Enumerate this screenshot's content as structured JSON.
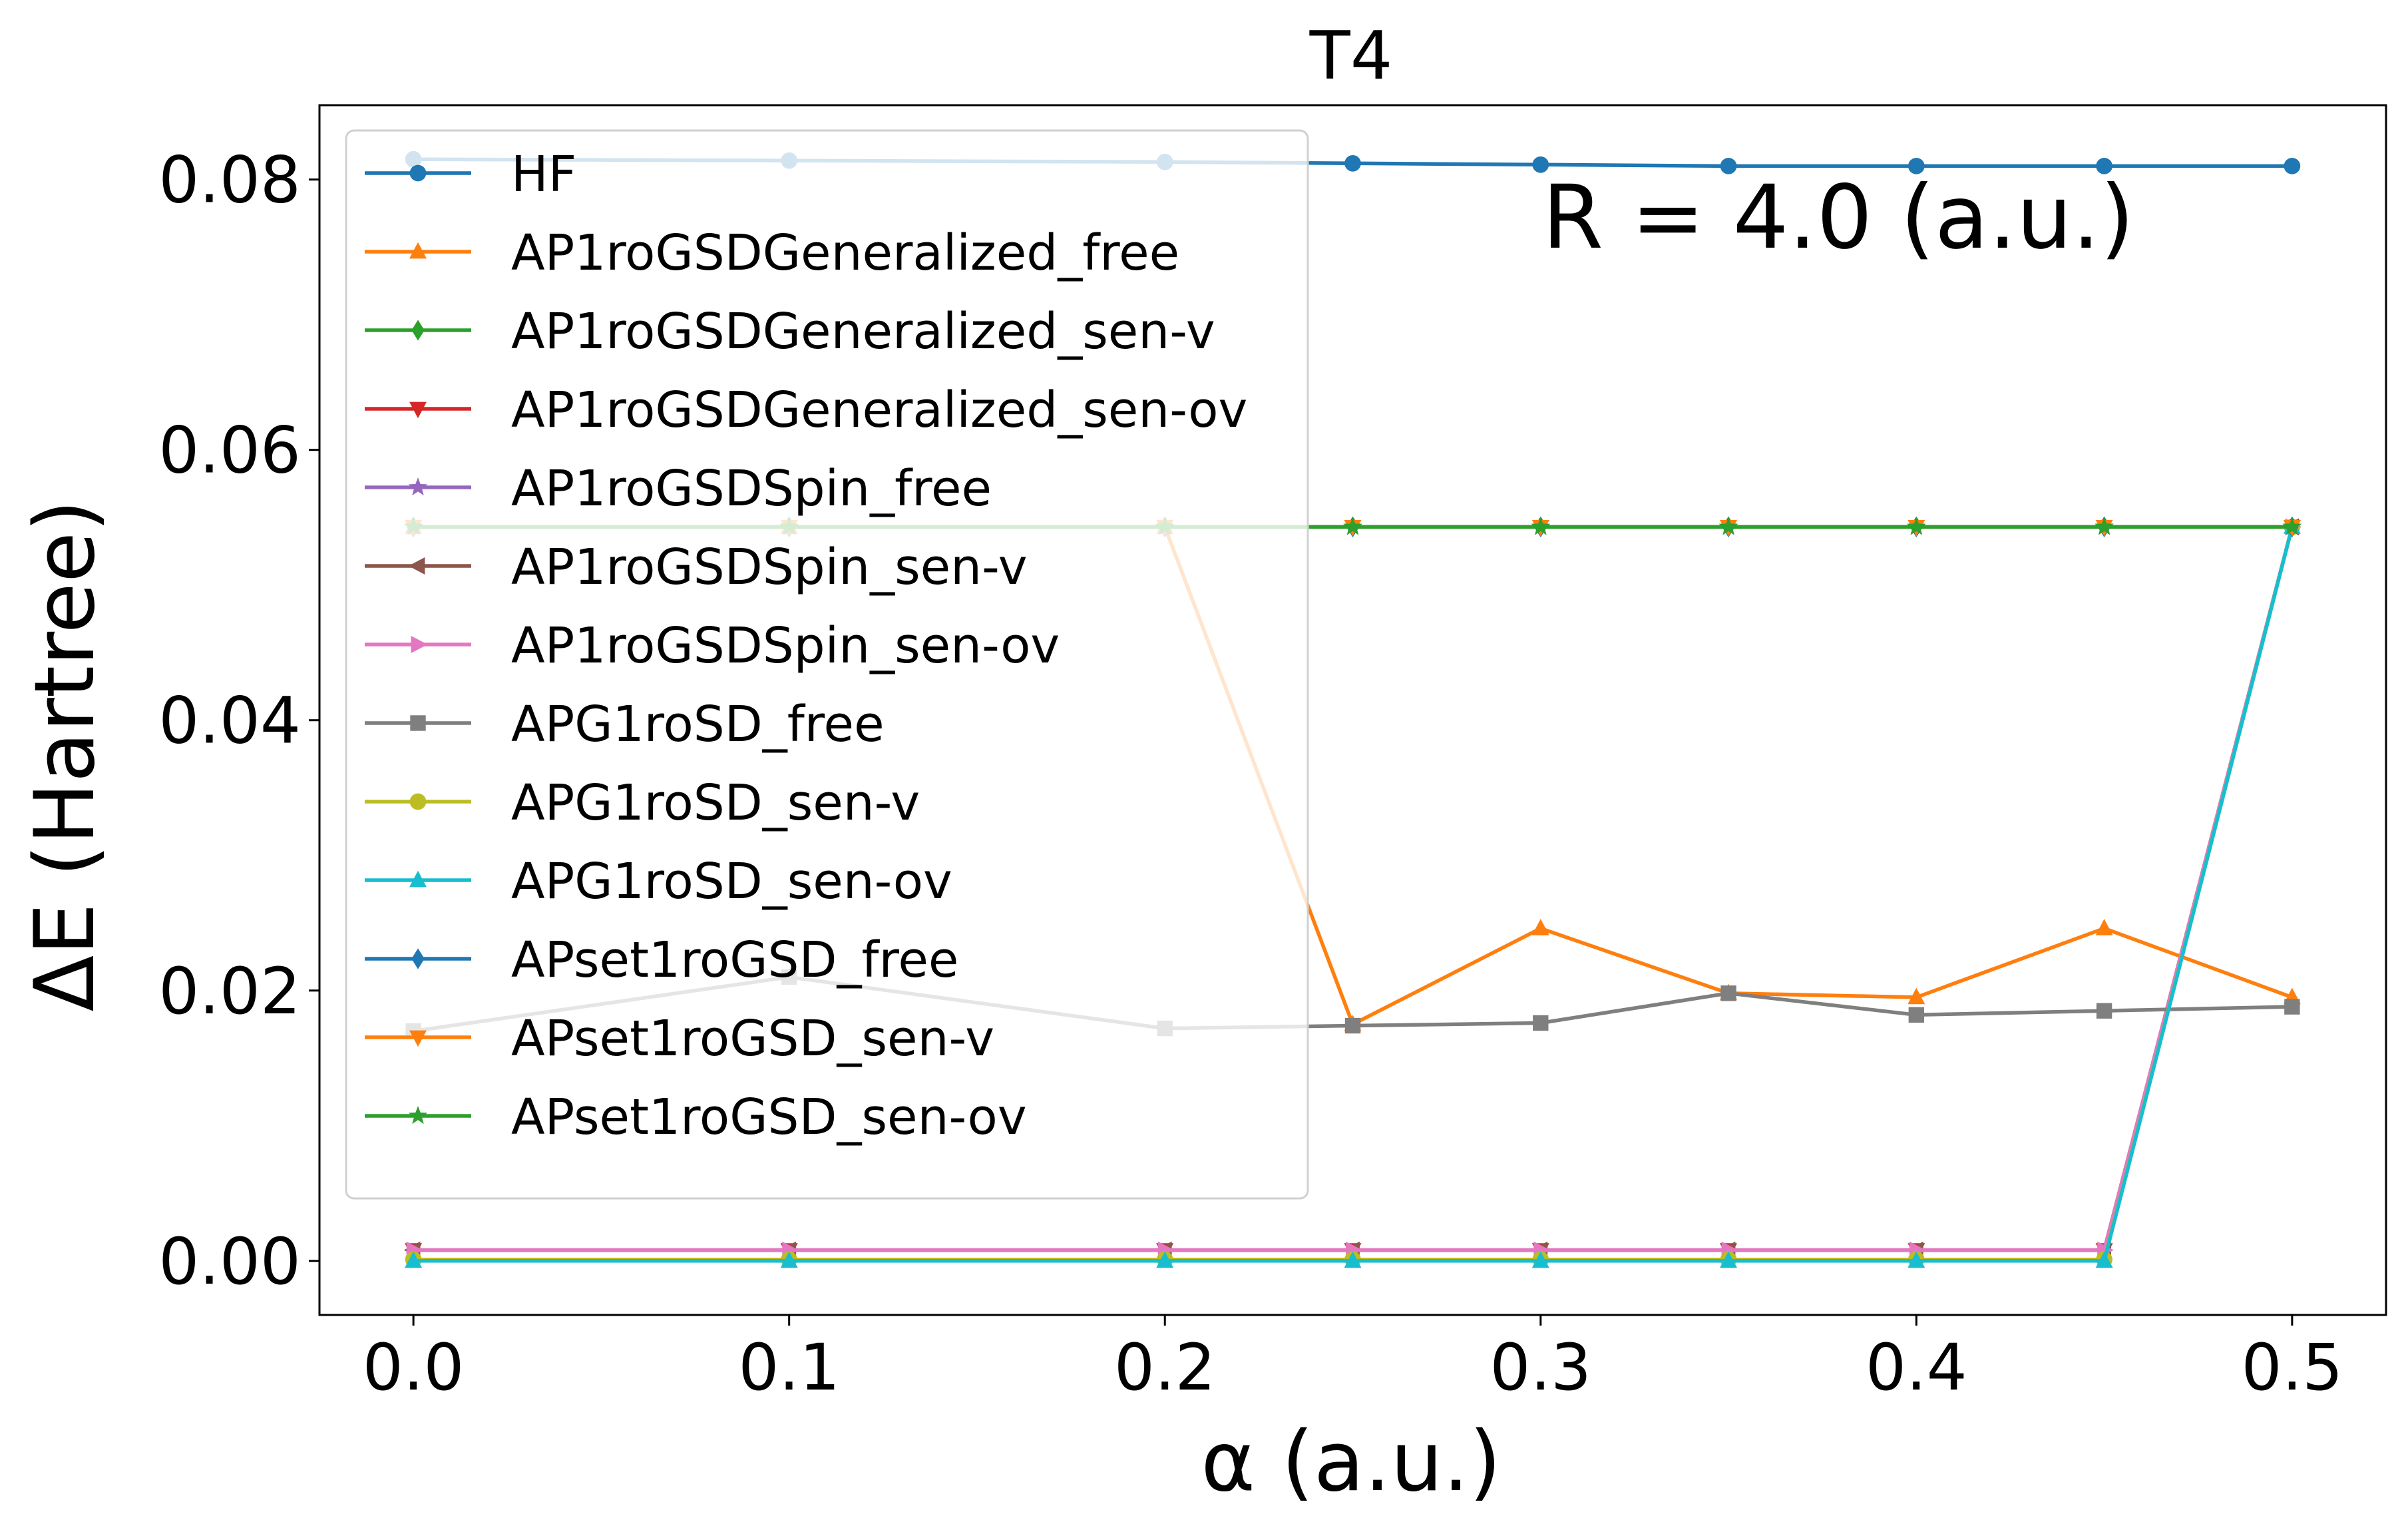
{
  "chart_data": {
    "type": "line",
    "title": "T4",
    "xlabel": "α (a.u.)",
    "ylabel": "ΔE (Hartree)",
    "annotation": "R = 4.0 (a.u.)",
    "xlim": [
      -0.025,
      0.525
    ],
    "ylim": [
      -0.004,
      0.0855
    ],
    "xticks": [
      0.0,
      0.1,
      0.2,
      0.3,
      0.4,
      0.5
    ],
    "xtick_labels": [
      "0.0",
      "0.1",
      "0.2",
      "0.3",
      "0.4",
      "0.5"
    ],
    "yticks": [
      0.0,
      0.02,
      0.04,
      0.06,
      0.08
    ],
    "ytick_labels": [
      "0.00",
      "0.02",
      "0.04",
      "0.06",
      "0.08"
    ],
    "grid": false,
    "legend_position": "upper-left",
    "x": [
      0.0,
      0.1,
      0.2,
      0.25,
      0.3,
      0.35,
      0.4,
      0.45,
      0.5
    ],
    "series": [
      {
        "name": "HF",
        "color": "#1f77b4",
        "marker": "circle",
        "values": [
          0.0815,
          0.0814,
          0.0813,
          0.0812,
          0.0811,
          0.081,
          0.081,
          0.081,
          0.081
        ]
      },
      {
        "name": "AP1roGSDGeneralized_free",
        "color": "#ff7f0e",
        "marker": "triangle-up",
        "values": [
          0.0543,
          0.0543,
          0.0543,
          0.0175,
          0.0246,
          0.0198,
          0.0195,
          0.0246,
          0.0195
        ]
      },
      {
        "name": "AP1roGSDGeneralized_sen-v",
        "color": "#2ca02c",
        "marker": "diamond",
        "values": [
          0.0543,
          0.0543,
          0.0543,
          0.0543,
          0.0543,
          0.0543,
          0.0543,
          0.0543,
          0.0543
        ]
      },
      {
        "name": "AP1roGSDGeneralized_sen-ov",
        "color": "#d62728",
        "marker": "triangle-down",
        "values": [
          0.0008,
          0.0008,
          0.0008,
          0.0008,
          0.0008,
          0.0008,
          0.0008,
          0.0008,
          0.0543
        ]
      },
      {
        "name": "AP1roGSDSpin_free",
        "color": "#9467bd",
        "marker": "star",
        "values": [
          0.0543,
          0.0543,
          0.0543,
          0.0543,
          0.0543,
          0.0543,
          0.0543,
          0.0543,
          0.0543
        ]
      },
      {
        "name": "AP1roGSDSpin_sen-v",
        "color": "#8c564b",
        "marker": "triangle-left",
        "values": [
          0.0008,
          0.0008,
          0.0008,
          0.0008,
          0.0008,
          0.0008,
          0.0008,
          0.0008,
          0.0543
        ]
      },
      {
        "name": "AP1roGSDSpin_sen-ov",
        "color": "#e377c2",
        "marker": "triangle-right",
        "values": [
          0.0008,
          0.0008,
          0.0008,
          0.0008,
          0.0008,
          0.0008,
          0.0008,
          0.0008,
          0.0543
        ]
      },
      {
        "name": "APG1roSD_free",
        "color": "#7f7f7f",
        "marker": "square",
        "values": [
          0.017,
          0.021,
          0.0172,
          0.0174,
          0.0176,
          0.0198,
          0.0182,
          0.0185,
          0.0188
        ]
      },
      {
        "name": "APG1roSD_sen-v",
        "color": "#bcbd22",
        "marker": "circle",
        "values": [
          0.0001,
          0.0001,
          0.0001,
          0.0001,
          0.0001,
          0.0001,
          0.0001,
          0.0001,
          0.0543
        ]
      },
      {
        "name": "APG1roSD_sen-ov",
        "color": "#17becf",
        "marker": "triangle-up",
        "values": [
          0.0,
          0.0,
          0.0,
          0.0,
          0.0,
          0.0,
          0.0,
          0.0,
          0.0543
        ]
      },
      {
        "name": "APset1roGSD_free",
        "color": "#1f77b4",
        "marker": "diamond",
        "values": [
          0.0543,
          0.0543,
          0.0543,
          0.0543,
          0.0543,
          0.0543,
          0.0543,
          0.0543,
          0.0543
        ]
      },
      {
        "name": "APset1roGSD_sen-v",
        "color": "#ff7f0e",
        "marker": "triangle-down",
        "values": [
          0.0543,
          0.0543,
          0.0543,
          0.0543,
          0.0543,
          0.0543,
          0.0543,
          0.0543,
          0.0543
        ]
      },
      {
        "name": "APset1roGSD_sen-ov",
        "color": "#2ca02c",
        "marker": "star",
        "values": [
          0.0543,
          0.0543,
          0.0543,
          0.0543,
          0.0543,
          0.0543,
          0.0543,
          0.0543,
          0.0543
        ]
      }
    ]
  }
}
